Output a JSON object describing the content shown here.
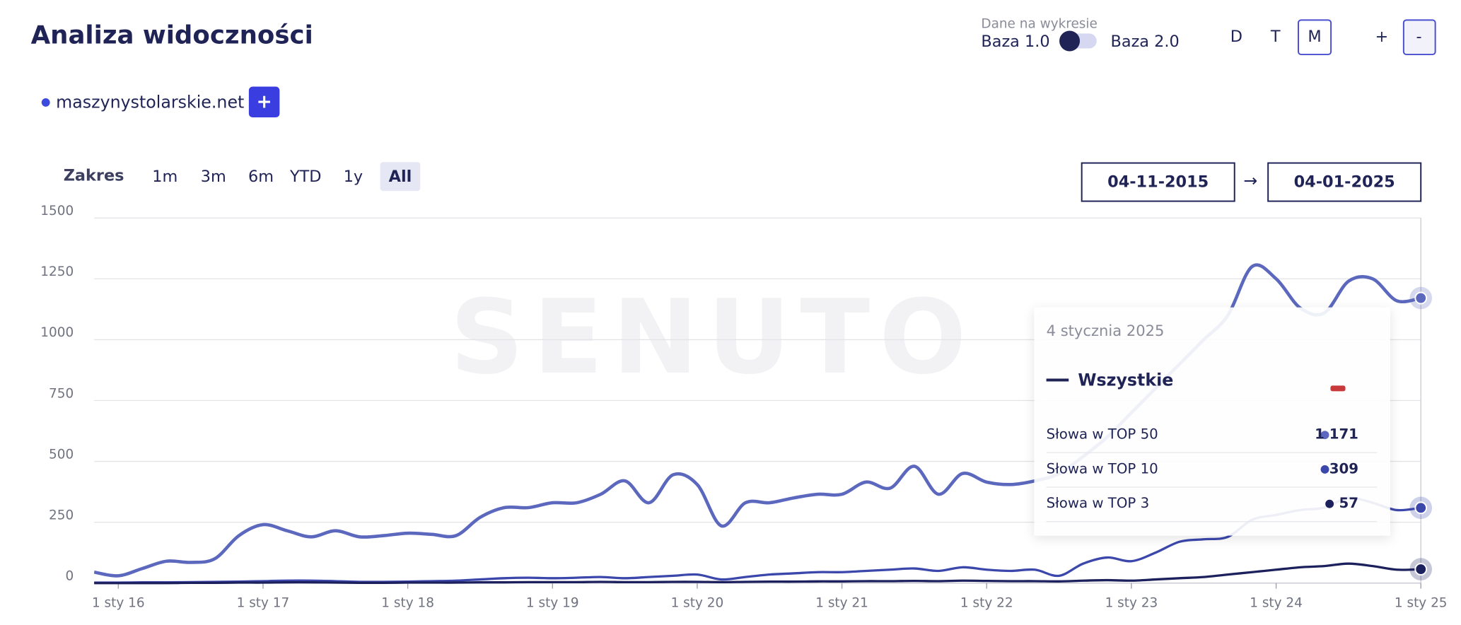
{
  "header": {
    "title": "Analiza widoczności",
    "data_label": "Dane na wykresie",
    "base_left": "Baza 1.0",
    "base_right": "Baza 2.0",
    "granularity": [
      "D",
      "T",
      "M"
    ],
    "zoom": [
      "+",
      "-"
    ]
  },
  "domain": {
    "name": "maszynystolarskie.net",
    "add": "+"
  },
  "range": {
    "label": "Zakres",
    "options": [
      "1m",
      "3m",
      "6m",
      "YTD",
      "1y",
      "All"
    ],
    "from": "04-11-2015",
    "arrow": "→",
    "to": "04-01-2025"
  },
  "watermark": "SENUTO",
  "chart_data": {
    "type": "line",
    "x": [
      "2015-11",
      "2016-01",
      "2016-03",
      "2016-05",
      "2016-07",
      "2016-09",
      "2016-11",
      "2017-01",
      "2017-03",
      "2017-05",
      "2017-07",
      "2017-09",
      "2017-11",
      "2018-01",
      "2018-03",
      "2018-05",
      "2018-07",
      "2018-09",
      "2018-11",
      "2019-01",
      "2019-03",
      "2019-05",
      "2019-07",
      "2019-09",
      "2019-11",
      "2020-01",
      "2020-03",
      "2020-05",
      "2020-07",
      "2020-09",
      "2020-11",
      "2021-01",
      "2021-03",
      "2021-05",
      "2021-07",
      "2021-09",
      "2021-11",
      "2022-01",
      "2022-03",
      "2022-05",
      "2022-07",
      "2022-09",
      "2022-11",
      "2023-01",
      "2023-03",
      "2023-05",
      "2023-07",
      "2023-09",
      "2023-11",
      "2024-01",
      "2024-03",
      "2024-05",
      "2024-07",
      "2024-09",
      "2024-11",
      "2025-01"
    ],
    "series": [
      {
        "name": "Słowa w TOP 50",
        "color": "#5b68bd",
        "values": [
          45,
          30,
          60,
          90,
          85,
          100,
          195,
          240,
          215,
          190,
          215,
          190,
          195,
          205,
          200,
          195,
          270,
          310,
          310,
          330,
          330,
          365,
          420,
          330,
          445,
          405,
          235,
          330,
          330,
          350,
          365,
          365,
          415,
          390,
          480,
          365,
          450,
          415,
          405,
          420,
          450,
          520,
          600,
          700,
          800,
          900,
          1000,
          1100,
          1300,
          1250,
          1130,
          1110,
          1240,
          1250,
          1160,
          1171
        ]
      },
      {
        "name": "Słowa w TOP 10",
        "color": "#3b47ab",
        "values": [
          2,
          2,
          3,
          3,
          4,
          5,
          6,
          8,
          10,
          10,
          8,
          5,
          5,
          6,
          8,
          10,
          15,
          20,
          22,
          20,
          22,
          25,
          20,
          25,
          30,
          35,
          15,
          25,
          35,
          40,
          45,
          45,
          50,
          55,
          60,
          50,
          65,
          55,
          50,
          55,
          30,
          80,
          105,
          90,
          125,
          170,
          180,
          190,
          260,
          280,
          300,
          310,
          350,
          330,
          300,
          309
        ]
      },
      {
        "name": "Słowa w TOP 3",
        "color": "#1c205c",
        "values": [
          0,
          0,
          0,
          0,
          1,
          1,
          2,
          2,
          3,
          3,
          2,
          1,
          1,
          2,
          2,
          2,
          3,
          3,
          4,
          4,
          4,
          5,
          4,
          4,
          5,
          5,
          4,
          5,
          6,
          6,
          7,
          7,
          8,
          8,
          9,
          8,
          10,
          9,
          8,
          8,
          7,
          10,
          12,
          10,
          15,
          20,
          25,
          35,
          45,
          55,
          65,
          70,
          80,
          70,
          55,
          57
        ]
      }
    ],
    "xlim": [
      "2015-11",
      "2025-01"
    ],
    "xticks": [
      {
        "value": "2016-01",
        "label": "1 sty 16"
      },
      {
        "value": "2017-01",
        "label": "1 sty 17"
      },
      {
        "value": "2018-01",
        "label": "1 sty 18"
      },
      {
        "value": "2019-01",
        "label": "1 sty 19"
      },
      {
        "value": "2020-01",
        "label": "1 sty 20"
      },
      {
        "value": "2021-01",
        "label": "1 sty 21"
      },
      {
        "value": "2022-01",
        "label": "1 sty 22"
      },
      {
        "value": "2023-01",
        "label": "1 sty 23"
      },
      {
        "value": "2024-01",
        "label": "1 sty 24"
      },
      {
        "value": "2025-01",
        "label": "1 sty 25"
      }
    ],
    "ylim": [
      0,
      1500
    ],
    "yticks": [
      0,
      250,
      500,
      750,
      1000,
      1250,
      1500
    ],
    "grid": true,
    "tooltip": {
      "date": "4 stycznia 2025",
      "title": "Wszystkie",
      "value_labels": [
        "1 171",
        "309",
        "57"
      ]
    }
  }
}
